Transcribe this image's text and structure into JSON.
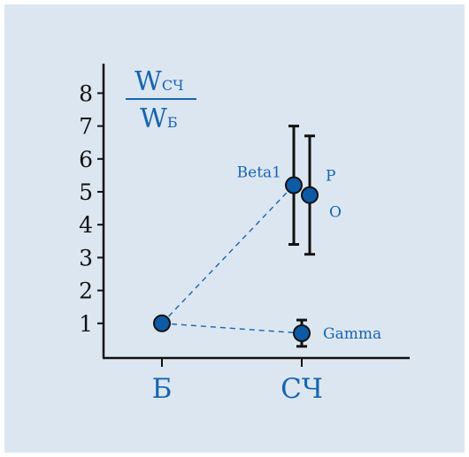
{
  "colors": {
    "background": "#dce6f1",
    "accent": "#1565b0",
    "axis": "#111111",
    "marker": "#0d5ba6"
  },
  "chart_data": {
    "type": "scatter",
    "ylabel": {
      "numerator_main": "W",
      "numerator_sub": "СЧ",
      "denominator_main": "W",
      "denominator_sub": "Б"
    },
    "categories": [
      "Б",
      "СЧ"
    ],
    "ylim": [
      0,
      8.8
    ],
    "yticks": [
      1,
      2,
      3,
      4,
      5,
      6,
      7,
      8
    ],
    "grid": false,
    "points": [
      {
        "name": "",
        "category": "Б",
        "offset": 0,
        "y": 1.0
      },
      {
        "name": "Beta1",
        "category": "СЧ",
        "offset": -0.5,
        "y": 5.2,
        "err_low": 3.4,
        "err_high": 7.0,
        "label_side": "left"
      },
      {
        "name": "P",
        "category": "СЧ",
        "offset": 0.5,
        "y": 4.9,
        "err_low": 3.1,
        "err_high": 6.7,
        "label_side": "upper-right"
      },
      {
        "name": "O",
        "category": "СЧ",
        "offset": 0.5,
        "y": 4.9,
        "label_side": "lower-right",
        "label_only": true
      },
      {
        "name": "Gamma",
        "category": "СЧ",
        "offset": 0,
        "y": 0.7,
        "err_low": 0.3,
        "err_high": 1.1,
        "label_side": "right"
      }
    ],
    "connectors": [
      {
        "from": 0,
        "to": 1
      },
      {
        "from": 0,
        "to": 4
      }
    ]
  }
}
